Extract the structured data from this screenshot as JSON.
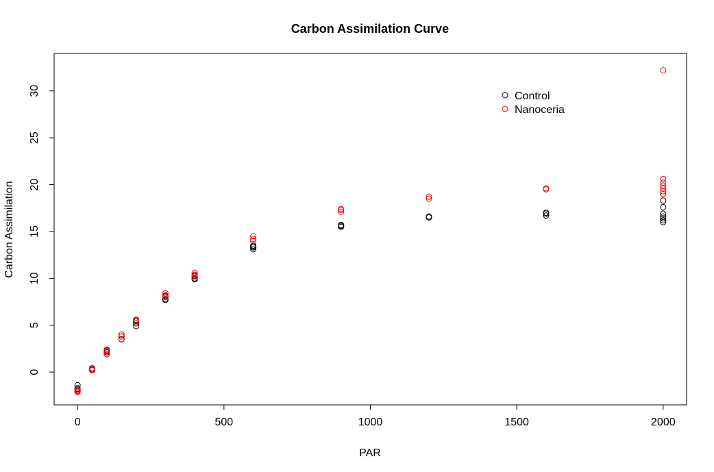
{
  "chart_data": {
    "type": "scatter",
    "title": "Carbon Assimilation Curve",
    "xlabel": "PAR",
    "ylabel": "Carbon Assimilation",
    "xlim": [
      -80,
      2080
    ],
    "ylim": [
      -3.5,
      34.0
    ],
    "xticks": [
      0,
      500,
      1000,
      1500,
      2000
    ],
    "yticks": [
      0,
      5,
      10,
      15,
      20,
      25,
      30
    ],
    "grid": false,
    "legend_position": "top-right",
    "series": [
      {
        "name": "Control",
        "color": "#000000",
        "points": [
          [
            0,
            -1.4
          ],
          [
            0,
            -1.8
          ],
          [
            0,
            -2.0
          ],
          [
            0,
            -2.1
          ],
          [
            50,
            0.2
          ],
          [
            50,
            0.3
          ],
          [
            50,
            0.4
          ],
          [
            100,
            1.9
          ],
          [
            100,
            2.1
          ],
          [
            100,
            2.3
          ],
          [
            150,
            3.5
          ],
          [
            150,
            3.8
          ],
          [
            150,
            4.0
          ],
          [
            200,
            4.9
          ],
          [
            200,
            5.2
          ],
          [
            200,
            5.4
          ],
          [
            200,
            5.5
          ],
          [
            300,
            7.7
          ],
          [
            300,
            7.8
          ],
          [
            300,
            8.0
          ],
          [
            300,
            8.1
          ],
          [
            400,
            9.9
          ],
          [
            400,
            10.0
          ],
          [
            400,
            10.2
          ],
          [
            400,
            10.3
          ],
          [
            600,
            13.1
          ],
          [
            600,
            13.3
          ],
          [
            600,
            13.4
          ],
          [
            600,
            13.5
          ],
          [
            900,
            15.5
          ],
          [
            900,
            15.6
          ],
          [
            900,
            15.7
          ],
          [
            1200,
            16.5
          ],
          [
            1200,
            16.6
          ],
          [
            1600,
            16.7
          ],
          [
            1600,
            16.9
          ],
          [
            1600,
            17.0
          ],
          [
            2000,
            16.0
          ],
          [
            2000,
            16.2
          ],
          [
            2000,
            16.4
          ],
          [
            2000,
            16.6
          ],
          [
            2000,
            16.9
          ],
          [
            2000,
            17.6
          ],
          [
            2000,
            18.3
          ]
        ]
      },
      {
        "name": "Nanoceria",
        "color": "#ff0000",
        "points": [
          [
            0,
            -1.7
          ],
          [
            0,
            -1.9
          ],
          [
            0,
            -2.0
          ],
          [
            0,
            -2.1
          ],
          [
            50,
            0.2
          ],
          [
            50,
            0.3
          ],
          [
            100,
            1.9
          ],
          [
            100,
            2.2
          ],
          [
            100,
            2.4
          ],
          [
            150,
            3.8
          ],
          [
            150,
            4.0
          ],
          [
            200,
            5.4
          ],
          [
            200,
            5.6
          ],
          [
            300,
            8.0
          ],
          [
            300,
            8.2
          ],
          [
            300,
            8.4
          ],
          [
            400,
            10.2
          ],
          [
            400,
            10.4
          ],
          [
            400,
            10.6
          ],
          [
            600,
            14.0
          ],
          [
            600,
            14.2
          ],
          [
            600,
            14.5
          ],
          [
            900,
            17.1
          ],
          [
            900,
            17.3
          ],
          [
            900,
            17.4
          ],
          [
            1200,
            18.5
          ],
          [
            1200,
            18.7
          ],
          [
            1600,
            19.5
          ],
          [
            1600,
            19.6
          ],
          [
            2000,
            19.0
          ],
          [
            2000,
            19.3
          ],
          [
            2000,
            19.6
          ],
          [
            2000,
            19.9
          ],
          [
            2000,
            20.2
          ],
          [
            2000,
            20.6
          ],
          [
            2000,
            32.2
          ]
        ]
      }
    ]
  }
}
